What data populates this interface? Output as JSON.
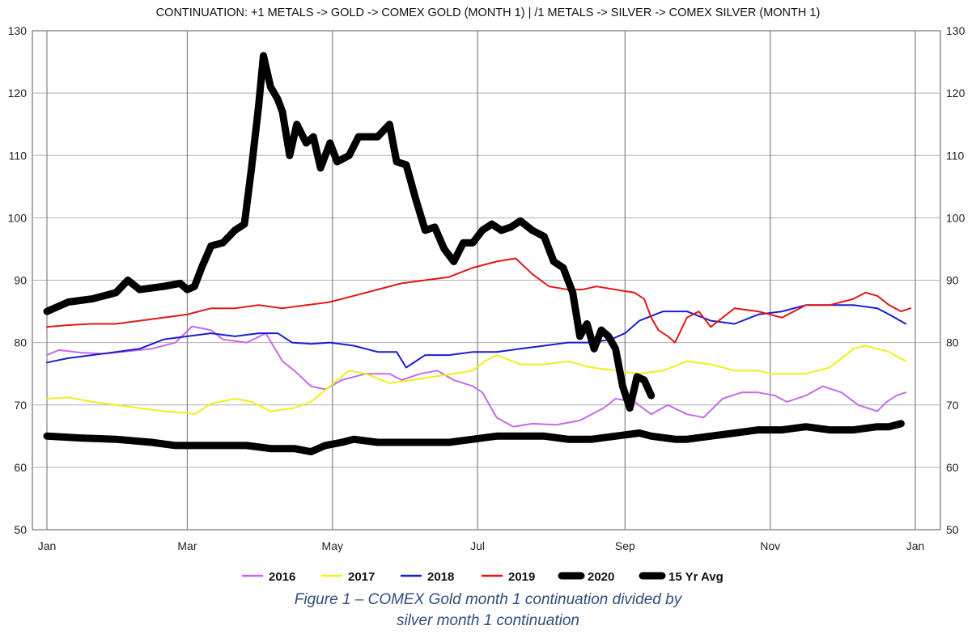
{
  "chart_data": {
    "type": "line",
    "title": "CONTINUATION: +1 METALS -> GOLD -> COMEX GOLD (MONTH 1) | /1 METALS -> SILVER -> COMEX SILVER (MONTH 1)",
    "xlabel": "",
    "ylabel": "",
    "x_ticks": [
      "Jan",
      "Mar",
      "May",
      "Jul",
      "Sep",
      "Nov",
      "Jan"
    ],
    "y_ticks": [
      50,
      60,
      70,
      80,
      90,
      100,
      110,
      120,
      130
    ],
    "ylim": [
      50,
      130
    ],
    "grid": true,
    "legend_position": "bottom",
    "x_unit": "day of year",
    "series": [
      {
        "name": "2016",
        "color": "#c46be8",
        "style": "thin",
        "points": [
          [
            1,
            78
          ],
          [
            6,
            78.8
          ],
          [
            15,
            78.4
          ],
          [
            25,
            78.2
          ],
          [
            35,
            78.6
          ],
          [
            45,
            79
          ],
          [
            55,
            80
          ],
          [
            62,
            82.6
          ],
          [
            70,
            82
          ],
          [
            75,
            80.5
          ],
          [
            85,
            80
          ],
          [
            93,
            81.5
          ],
          [
            100,
            77
          ],
          [
            105,
            75.5
          ],
          [
            112,
            73
          ],
          [
            118,
            72.5
          ],
          [
            125,
            74
          ],
          [
            135,
            75
          ],
          [
            145,
            75
          ],
          [
            150,
            74
          ],
          [
            158,
            75
          ],
          [
            165,
            75.5
          ],
          [
            172,
            74
          ],
          [
            180,
            73
          ],
          [
            184,
            72
          ],
          [
            190,
            68
          ],
          [
            197,
            66.5
          ],
          [
            205,
            67
          ],
          [
            215,
            66.8
          ],
          [
            225,
            67.5
          ],
          [
            235,
            69.5
          ],
          [
            240,
            71
          ],
          [
            248,
            70.5
          ],
          [
            255,
            68.5
          ],
          [
            262,
            70
          ],
          [
            270,
            68.5
          ],
          [
            277,
            68
          ],
          [
            285,
            71
          ],
          [
            293,
            72
          ],
          [
            300,
            72
          ],
          [
            307,
            71.5
          ],
          [
            312,
            70.5
          ],
          [
            320,
            71.5
          ],
          [
            327,
            73
          ],
          [
            335,
            72
          ],
          [
            342,
            70
          ],
          [
            350,
            69
          ],
          [
            354,
            70.5
          ],
          [
            358,
            71.5
          ],
          [
            362,
            72
          ]
        ]
      },
      {
        "name": "2017",
        "color": "#f2ee1a",
        "style": "thin",
        "points": [
          [
            1,
            71
          ],
          [
            10,
            71.2
          ],
          [
            20,
            70.5
          ],
          [
            30,
            70
          ],
          [
            40,
            69.5
          ],
          [
            50,
            69
          ],
          [
            60,
            68.7
          ],
          [
            63,
            68.5
          ],
          [
            70,
            70.2
          ],
          [
            80,
            71
          ],
          [
            87,
            70.5
          ],
          [
            95,
            69
          ],
          [
            105,
            69.5
          ],
          [
            112,
            70.5
          ],
          [
            120,
            73
          ],
          [
            128,
            75.5
          ],
          [
            135,
            75
          ],
          [
            145,
            73.5
          ],
          [
            155,
            74
          ],
          [
            163,
            74.5
          ],
          [
            172,
            75
          ],
          [
            180,
            75.5
          ],
          [
            185,
            77
          ],
          [
            190,
            78
          ],
          [
            200,
            76.5
          ],
          [
            210,
            76.5
          ],
          [
            220,
            77
          ],
          [
            230,
            76
          ],
          [
            240,
            75.5
          ],
          [
            250,
            75
          ],
          [
            260,
            75.5
          ],
          [
            270,
            77
          ],
          [
            280,
            76.5
          ],
          [
            290,
            75.5
          ],
          [
            300,
            75.5
          ],
          [
            305,
            75
          ],
          [
            312,
            75
          ],
          [
            320,
            75
          ],
          [
            330,
            76
          ],
          [
            340,
            79
          ],
          [
            345,
            79.5
          ],
          [
            350,
            79
          ],
          [
            355,
            78.5
          ],
          [
            362,
            77
          ]
        ]
      },
      {
        "name": "2018",
        "color": "#1a1ed2",
        "style": "thin",
        "points": [
          [
            1,
            76.8
          ],
          [
            10,
            77.5
          ],
          [
            20,
            78
          ],
          [
            30,
            78.5
          ],
          [
            40,
            79
          ],
          [
            50,
            80.5
          ],
          [
            60,
            81
          ],
          [
            70,
            81.5
          ],
          [
            80,
            81
          ],
          [
            90,
            81.5
          ],
          [
            98,
            81.5
          ],
          [
            104,
            80
          ],
          [
            112,
            79.8
          ],
          [
            120,
            80
          ],
          [
            130,
            79.5
          ],
          [
            140,
            78.5
          ],
          [
            148,
            78.5
          ],
          [
            152,
            76
          ],
          [
            160,
            78
          ],
          [
            170,
            78
          ],
          [
            180,
            78.5
          ],
          [
            190,
            78.5
          ],
          [
            200,
            79
          ],
          [
            210,
            79.5
          ],
          [
            220,
            80
          ],
          [
            230,
            80
          ],
          [
            238,
            80.5
          ],
          [
            244,
            81.5
          ],
          [
            250,
            83.5
          ],
          [
            260,
            85
          ],
          [
            270,
            85
          ],
          [
            280,
            83.5
          ],
          [
            290,
            83
          ],
          [
            300,
            84.5
          ],
          [
            310,
            85
          ],
          [
            320,
            86
          ],
          [
            330,
            86
          ],
          [
            340,
            86
          ],
          [
            350,
            85.5
          ],
          [
            355,
            84.5
          ],
          [
            362,
            83
          ]
        ]
      },
      {
        "name": "2019",
        "color": "#e01818",
        "style": "thin",
        "points": [
          [
            1,
            82.5
          ],
          [
            10,
            82.8
          ],
          [
            20,
            83
          ],
          [
            30,
            83
          ],
          [
            40,
            83.5
          ],
          [
            50,
            84
          ],
          [
            60,
            84.5
          ],
          [
            70,
            85.5
          ],
          [
            80,
            85.5
          ],
          [
            90,
            86
          ],
          [
            100,
            85.5
          ],
          [
            110,
            86
          ],
          [
            120,
            86.5
          ],
          [
            130,
            87.5
          ],
          [
            140,
            88.5
          ],
          [
            150,
            89.5
          ],
          [
            160,
            90
          ],
          [
            170,
            90.5
          ],
          [
            180,
            92
          ],
          [
            190,
            93
          ],
          [
            198,
            93.5
          ],
          [
            205,
            91
          ],
          [
            212,
            89
          ],
          [
            220,
            88.5
          ],
          [
            226,
            88.5
          ],
          [
            232,
            89
          ],
          [
            240,
            88.5
          ],
          [
            248,
            88
          ],
          [
            252,
            87
          ],
          [
            255,
            84
          ],
          [
            258,
            82
          ],
          [
            262,
            81
          ],
          [
            265,
            80
          ],
          [
            270,
            84
          ],
          [
            275,
            85
          ],
          [
            280,
            82.5
          ],
          [
            290,
            85.5
          ],
          [
            300,
            85
          ],
          [
            310,
            84
          ],
          [
            320,
            86
          ],
          [
            330,
            86
          ],
          [
            340,
            87
          ],
          [
            345,
            88
          ],
          [
            350,
            87.5
          ],
          [
            355,
            86
          ],
          [
            360,
            85
          ],
          [
            364,
            85.5
          ]
        ]
      },
      {
        "name": "2020",
        "color": "#000000",
        "style": "bold",
        "points": [
          [
            1,
            85
          ],
          [
            10,
            86.5
          ],
          [
            20,
            87
          ],
          [
            30,
            88
          ],
          [
            35,
            90
          ],
          [
            40,
            88.5
          ],
          [
            50,
            89
          ],
          [
            57,
            89.5
          ],
          [
            60,
            88.5
          ],
          [
            63,
            89
          ],
          [
            66,
            92
          ],
          [
            70,
            95.5
          ],
          [
            75,
            96
          ],
          [
            80,
            98
          ],
          [
            84,
            99
          ],
          [
            87,
            108
          ],
          [
            90,
            118
          ],
          [
            92,
            126
          ],
          [
            95,
            121
          ],
          [
            98,
            119
          ],
          [
            100,
            117
          ],
          [
            103,
            110
          ],
          [
            106,
            115
          ],
          [
            110,
            112
          ],
          [
            113,
            113
          ],
          [
            116,
            108
          ],
          [
            120,
            112
          ],
          [
            123,
            109
          ],
          [
            128,
            110
          ],
          [
            132,
            113
          ],
          [
            136,
            113
          ],
          [
            140,
            113
          ],
          [
            145,
            115
          ],
          [
            148,
            109
          ],
          [
            152,
            108.5
          ],
          [
            156,
            103
          ],
          [
            160,
            98
          ],
          [
            164,
            98.5
          ],
          [
            168,
            95
          ],
          [
            172,
            93
          ],
          [
            176,
            96
          ],
          [
            180,
            96
          ],
          [
            184,
            98
          ],
          [
            188,
            99
          ],
          [
            192,
            98
          ],
          [
            196,
            98.5
          ],
          [
            200,
            99.5
          ],
          [
            205,
            98
          ],
          [
            210,
            97
          ],
          [
            214,
            93
          ],
          [
            218,
            92
          ],
          [
            222,
            88
          ],
          [
            225,
            81
          ],
          [
            228,
            83
          ],
          [
            231,
            79
          ],
          [
            234,
            82
          ],
          [
            237,
            81
          ],
          [
            240,
            79
          ],
          [
            243,
            73
          ],
          [
            246,
            69.5
          ],
          [
            249,
            74.5
          ],
          [
            252,
            74
          ],
          [
            255,
            71.5
          ]
        ]
      },
      {
        "name": "15 Yr Avg",
        "color": "#000000",
        "style": "bold",
        "points": [
          [
            1,
            65
          ],
          [
            15,
            64.7
          ],
          [
            30,
            64.5
          ],
          [
            45,
            64
          ],
          [
            55,
            63.5
          ],
          [
            65,
            63.5
          ],
          [
            75,
            63.5
          ],
          [
            85,
            63.5
          ],
          [
            95,
            63
          ],
          [
            105,
            63
          ],
          [
            112,
            62.5
          ],
          [
            118,
            63.5
          ],
          [
            125,
            64
          ],
          [
            130,
            64.5
          ],
          [
            140,
            64
          ],
          [
            150,
            64
          ],
          [
            160,
            64
          ],
          [
            170,
            64
          ],
          [
            180,
            64.5
          ],
          [
            190,
            65
          ],
          [
            200,
            65
          ],
          [
            210,
            65
          ],
          [
            220,
            64.5
          ],
          [
            230,
            64.5
          ],
          [
            240,
            65
          ],
          [
            250,
            65.5
          ],
          [
            255,
            65
          ],
          [
            265,
            64.5
          ],
          [
            270,
            64.5
          ],
          [
            280,
            65
          ],
          [
            290,
            65.5
          ],
          [
            300,
            66
          ],
          [
            310,
            66
          ],
          [
            320,
            66.5
          ],
          [
            330,
            66
          ],
          [
            340,
            66
          ],
          [
            350,
            66.5
          ],
          [
            355,
            66.5
          ],
          [
            360,
            67
          ]
        ]
      }
    ]
  },
  "caption": {
    "line1": "Figure 1 – COMEX Gold month 1 continuation divided by",
    "line2": "silver month 1 continuation"
  }
}
